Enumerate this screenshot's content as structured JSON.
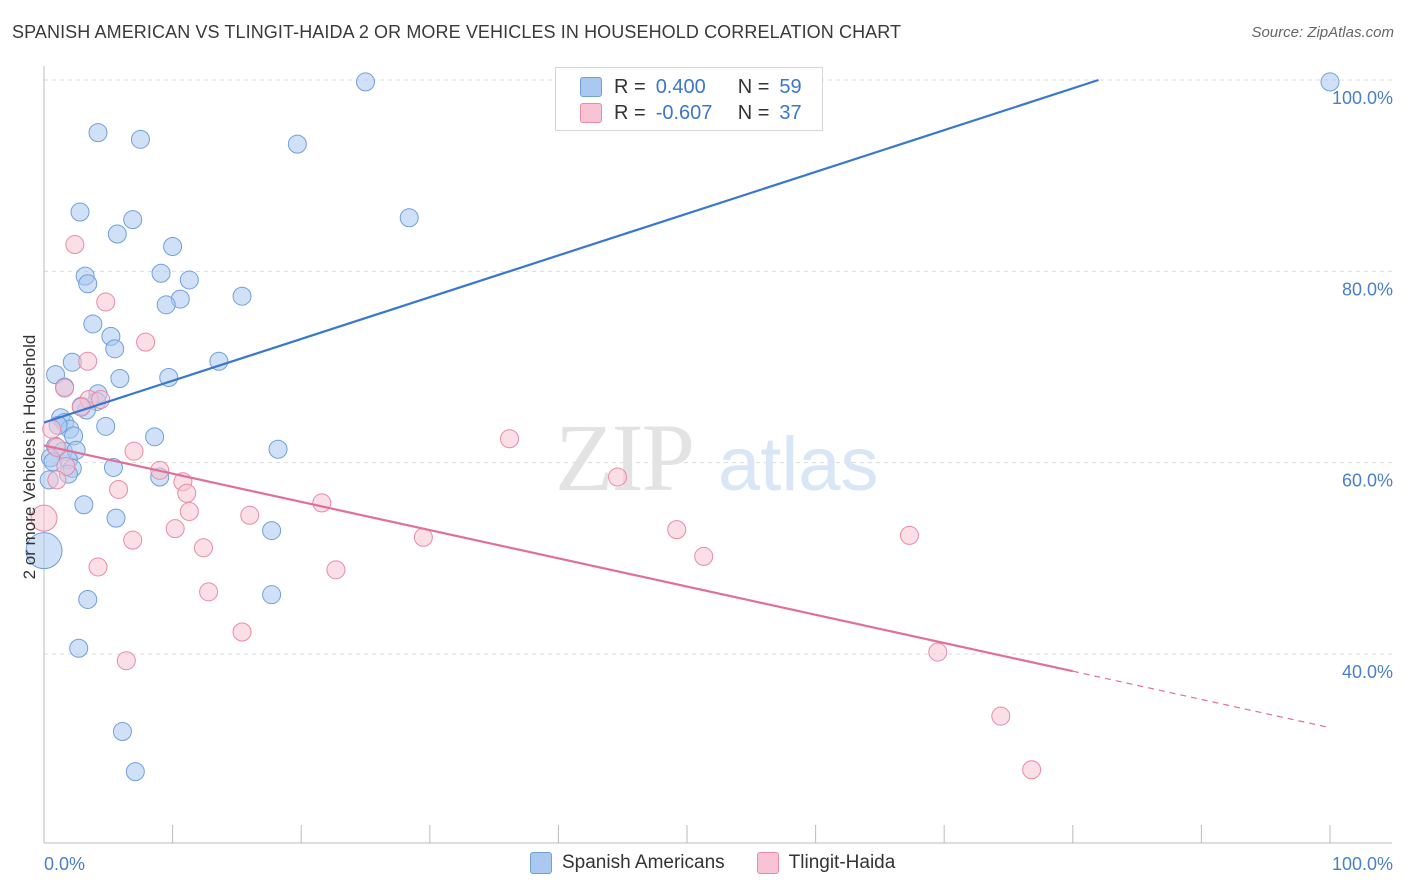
{
  "title": "SPANISH AMERICAN VS TLINGIT-HAIDA 2 OR MORE VEHICLES IN HOUSEHOLD CORRELATION CHART",
  "source": "Source: ZipAtlas.com",
  "watermark": {
    "zip": "ZIP",
    "atlas": "atlas"
  },
  "legend_top": [
    {
      "r_label": "R =",
      "r_value": "0.400",
      "n_label": "N =",
      "n_value": "59",
      "color": "#aac8f0",
      "border": "#6f9fdc"
    },
    {
      "r_label": "R =",
      "r_value": "-0.607",
      "n_label": "N =",
      "n_value": "37",
      "color": "#f8c4d4",
      "border": "#e88aa8"
    }
  ],
  "legend_bottom": [
    {
      "label": "Spanish Americans",
      "color": "#aac8f0",
      "border": "#6f9fdc"
    },
    {
      "label": "Tlingit-Haida",
      "color": "#f8c4d4",
      "border": "#e88aa8"
    }
  ],
  "chart_data": {
    "type": "scatter",
    "title": "SPANISH AMERICAN VS TLINGIT-HAIDA 2 OR MORE VEHICLES IN HOUSEHOLD CORRELATION CHART",
    "xlabel": "",
    "ylabel": "2 or more Vehicles in Household",
    "x_tick_labels": [
      "0.0%",
      "100.0%"
    ],
    "y_tick_labels": [
      "40.0%",
      "60.0%",
      "80.0%",
      "100.0%"
    ],
    "xlim": [
      0,
      100
    ],
    "ylim": [
      19,
      102
    ],
    "y_ticks": [
      40,
      60,
      80,
      100
    ],
    "grid": true,
    "series": [
      {
        "name": "Spanish Americans",
        "color": "#6f9fdc",
        "fill": "#aac8f0",
        "trend": {
          "x": [
            0,
            82
          ],
          "y": [
            64.2,
            100
          ],
          "color": "#3a78cf"
        },
        "points": [
          [
            25,
            99.8,
            9
          ],
          [
            100,
            99.8,
            9
          ],
          [
            4.2,
            94.5,
            9
          ],
          [
            7.5,
            93.8,
            9
          ],
          [
            19.7,
            93.3,
            9
          ],
          [
            2.8,
            86.2,
            9
          ],
          [
            6.9,
            85.4,
            9
          ],
          [
            28.4,
            85.6,
            9
          ],
          [
            5.7,
            83.9,
            9
          ],
          [
            10,
            82.6,
            9
          ],
          [
            3.2,
            79.5,
            9
          ],
          [
            3.4,
            78.7,
            9
          ],
          [
            9.1,
            79.8,
            9
          ],
          [
            11.3,
            79.1,
            9
          ],
          [
            10.6,
            77.1,
            9
          ],
          [
            9.5,
            76.5,
            9
          ],
          [
            15.4,
            77.4,
            9
          ],
          [
            3.8,
            74.5,
            9
          ],
          [
            5.2,
            73.2,
            9
          ],
          [
            5.5,
            71.9,
            9
          ],
          [
            2.2,
            70.5,
            9
          ],
          [
            13.6,
            70.6,
            9
          ],
          [
            0.9,
            69.2,
            9
          ],
          [
            5.9,
            68.8,
            9
          ],
          [
            9.7,
            68.9,
            9
          ],
          [
            1.6,
            67.9,
            9
          ],
          [
            4.2,
            67.2,
            9
          ],
          [
            4.1,
            66.4,
            9
          ],
          [
            3.3,
            65.5,
            9
          ],
          [
            2.9,
            65.9,
            9
          ],
          [
            1.3,
            64.7,
            9
          ],
          [
            1.6,
            64.2,
            9
          ],
          [
            2.0,
            63.5,
            9
          ],
          [
            1.1,
            63.9,
            9
          ],
          [
            4.8,
            63.8,
            9
          ],
          [
            2.3,
            62.8,
            9
          ],
          [
            8.6,
            62.7,
            9
          ],
          [
            0.9,
            61.7,
            9
          ],
          [
            1.5,
            61.2,
            9
          ],
          [
            2.5,
            61.3,
            9
          ],
          [
            18.2,
            61.4,
            9
          ],
          [
            0.5,
            60.5,
            9
          ],
          [
            0.7,
            60.1,
            9
          ],
          [
            1.9,
            60.3,
            9
          ],
          [
            2.2,
            59.4,
            9
          ],
          [
            5.4,
            59.5,
            9
          ],
          [
            1.9,
            58.8,
            9
          ],
          [
            9.0,
            58.5,
            9
          ],
          [
            0.4,
            58.2,
            9
          ],
          [
            3.1,
            55.6,
            9
          ],
          [
            5.6,
            54.2,
            9
          ],
          [
            17.7,
            52.9,
            9
          ],
          [
            0,
            50.8,
            18
          ],
          [
            3.4,
            45.7,
            9
          ],
          [
            17.7,
            46.2,
            9
          ],
          [
            2.7,
            40.6,
            9
          ],
          [
            6.1,
            31.9,
            9
          ],
          [
            7.1,
            27.7,
            9
          ]
        ]
      },
      {
        "name": "Tlingit-Haida",
        "color": "#e88aa8",
        "fill": "#f8c4d4",
        "trend": {
          "x": [
            0,
            80
          ],
          "y": [
            61.8,
            38.2
          ],
          "dash_x": [
            80,
            100
          ],
          "dash_y": [
            38.2,
            32.3
          ],
          "color": "#e0709a"
        },
        "points": [
          [
            2.4,
            82.8,
            9
          ],
          [
            4.8,
            76.8,
            9
          ],
          [
            3.4,
            70.6,
            9
          ],
          [
            7.9,
            72.6,
            9
          ],
          [
            1.6,
            67.8,
            9
          ],
          [
            3.5,
            66.6,
            9
          ],
          [
            4.4,
            66.6,
            9
          ],
          [
            2.9,
            65.8,
            9
          ],
          [
            0.6,
            63.5,
            9
          ],
          [
            1.0,
            61.6,
            9
          ],
          [
            7.0,
            61.2,
            9
          ],
          [
            36.2,
            62.5,
            9
          ],
          [
            1.7,
            59.6,
            9
          ],
          [
            9.0,
            59.2,
            9
          ],
          [
            10.8,
            58.0,
            9
          ],
          [
            1.0,
            58.2,
            9
          ],
          [
            44.6,
            58.5,
            9
          ],
          [
            5.8,
            57.2,
            9
          ],
          [
            11.1,
            56.8,
            9
          ],
          [
            21.6,
            55.8,
            9
          ],
          [
            11.3,
            54.9,
            9
          ],
          [
            16.0,
            54.5,
            9
          ],
          [
            0,
            54.2,
            13
          ],
          [
            10.2,
            53.1,
            9
          ],
          [
            49.2,
            53.0,
            9
          ],
          [
            6.9,
            51.9,
            9
          ],
          [
            29.5,
            52.2,
            9
          ],
          [
            67.3,
            52.4,
            9
          ],
          [
            12.4,
            51.1,
            9
          ],
          [
            51.3,
            50.2,
            9
          ],
          [
            4.2,
            49.1,
            9
          ],
          [
            22.7,
            48.8,
            9
          ],
          [
            12.8,
            46.5,
            9
          ],
          [
            15.4,
            42.3,
            9
          ],
          [
            69.5,
            40.2,
            9
          ],
          [
            6.4,
            39.3,
            9
          ],
          [
            74.4,
            33.5,
            9
          ],
          [
            76.8,
            27.9,
            9
          ]
        ]
      }
    ]
  }
}
